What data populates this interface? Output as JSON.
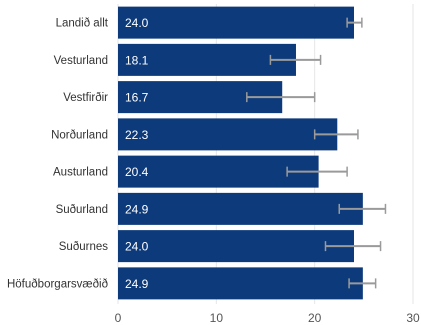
{
  "chart_data": {
    "type": "bar",
    "orientation": "horizontal",
    "categories": [
      "Landið allt",
      "Vesturland",
      "Vestfirðir",
      "Norðurland",
      "Austurland",
      "Suðurland",
      "Suðurnes",
      "Höfuðborgarsvæðið"
    ],
    "values": [
      24.0,
      18.1,
      16.7,
      22.3,
      20.4,
      24.9,
      24.0,
      24.9
    ],
    "value_labels": [
      "24.0",
      "18.1",
      "16.7",
      "22.3",
      "20.4",
      "24.9",
      "24.0",
      "24.9"
    ],
    "error_bars": [
      [
        23.3,
        24.8
      ],
      [
        15.5,
        20.6
      ],
      [
        13.1,
        20.0
      ],
      [
        20.0,
        24.4
      ],
      [
        17.2,
        23.3
      ],
      [
        22.5,
        27.2
      ],
      [
        21.1,
        26.7
      ],
      [
        23.5,
        26.2
      ]
    ],
    "xlim": [
      0,
      30
    ],
    "x_ticks": [
      "0",
      "10",
      "20",
      "30"
    ],
    "grid": true,
    "colors": {
      "bar": "#0d3a7a",
      "error_bar": "#9a9a9a",
      "grid": "#e6e6e6"
    }
  }
}
